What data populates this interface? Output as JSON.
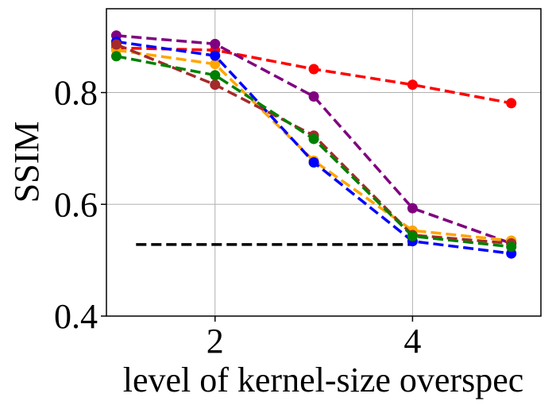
{
  "chart_data": {
    "type": "line",
    "title": "",
    "xlabel": "level of kernel-size overspec",
    "ylabel": "SSIM",
    "xlim": [
      0.9,
      5.3
    ],
    "ylim": [
      0.4,
      0.95
    ],
    "xticks": [
      2,
      4
    ],
    "xtick_labels": [
      "2",
      "4"
    ],
    "yticks": [
      0.4,
      0.6,
      0.8
    ],
    "ytick_labels": [
      "0.4",
      "0.6",
      "0.8"
    ],
    "grid": true,
    "x": [
      1,
      2,
      3,
      4,
      5
    ],
    "series": [
      {
        "name": "red",
        "color": "#ff0000",
        "values": [
          0.88,
          0.876,
          0.842,
          0.814,
          0.781
        ]
      },
      {
        "name": "purple",
        "color": "#800080",
        "values": [
          0.902,
          0.887,
          0.793,
          0.593,
          0.53
        ]
      },
      {
        "name": "orange",
        "color": "#ffa500",
        "values": [
          0.876,
          0.851,
          0.678,
          0.553,
          0.535
        ]
      },
      {
        "name": "blue",
        "color": "#0000ff",
        "values": [
          0.891,
          0.866,
          0.675,
          0.534,
          0.512
        ]
      },
      {
        "name": "brown",
        "color": "#a52a2a",
        "values": [
          0.886,
          0.814,
          0.723,
          0.545,
          0.53
        ]
      },
      {
        "name": "green",
        "color": "#008000",
        "values": [
          0.865,
          0.831,
          0.717,
          0.543,
          0.524
        ]
      }
    ],
    "baseline": {
      "name": "baseline",
      "color": "#000000",
      "x": [
        1.2,
        4.0
      ],
      "y": 0.528,
      "style": "dashed"
    }
  }
}
